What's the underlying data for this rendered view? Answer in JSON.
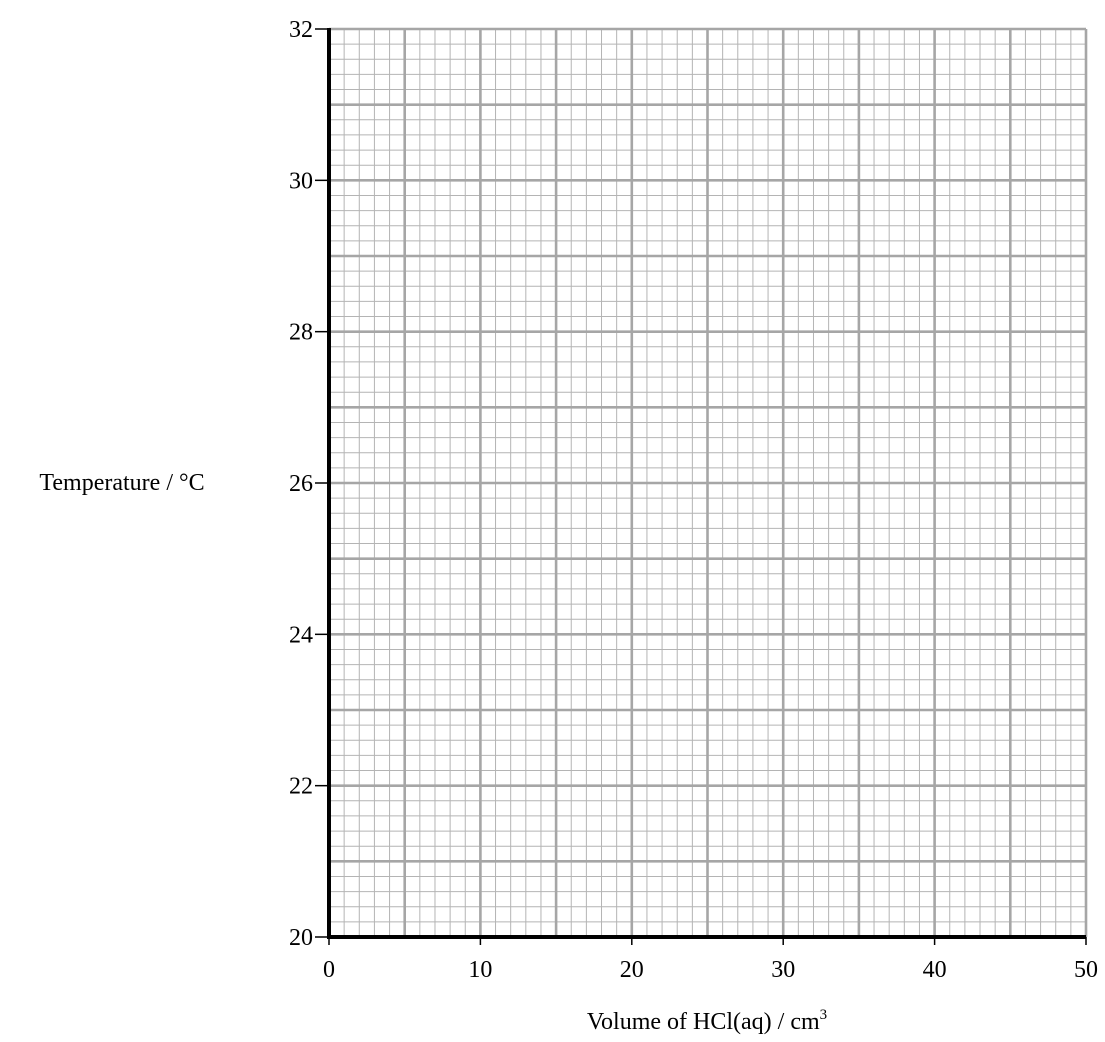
{
  "chart_data": {
    "type": "scatter",
    "title": "",
    "xlabel": "Volume of HCl(aq) / cm",
    "xlabel_superscript": "3",
    "ylabel": "Temperature / °C",
    "xlim": [
      0,
      50
    ],
    "ylim": [
      20,
      32
    ],
    "x_ticks": [
      "0",
      "10",
      "20",
      "30",
      "40",
      "50"
    ],
    "y_ticks": [
      "20",
      "22",
      "24",
      "26",
      "28",
      "30",
      "32"
    ],
    "grid": true,
    "grid_minor_step_x": 1,
    "grid_minor_step_y": 0.2,
    "grid_major_step_x": 5,
    "grid_major_step_y": 1,
    "series": [],
    "colors": {
      "grid_minor": "#b4b4b4",
      "grid_major": "#a6a6a6",
      "axis": "#000000"
    }
  }
}
